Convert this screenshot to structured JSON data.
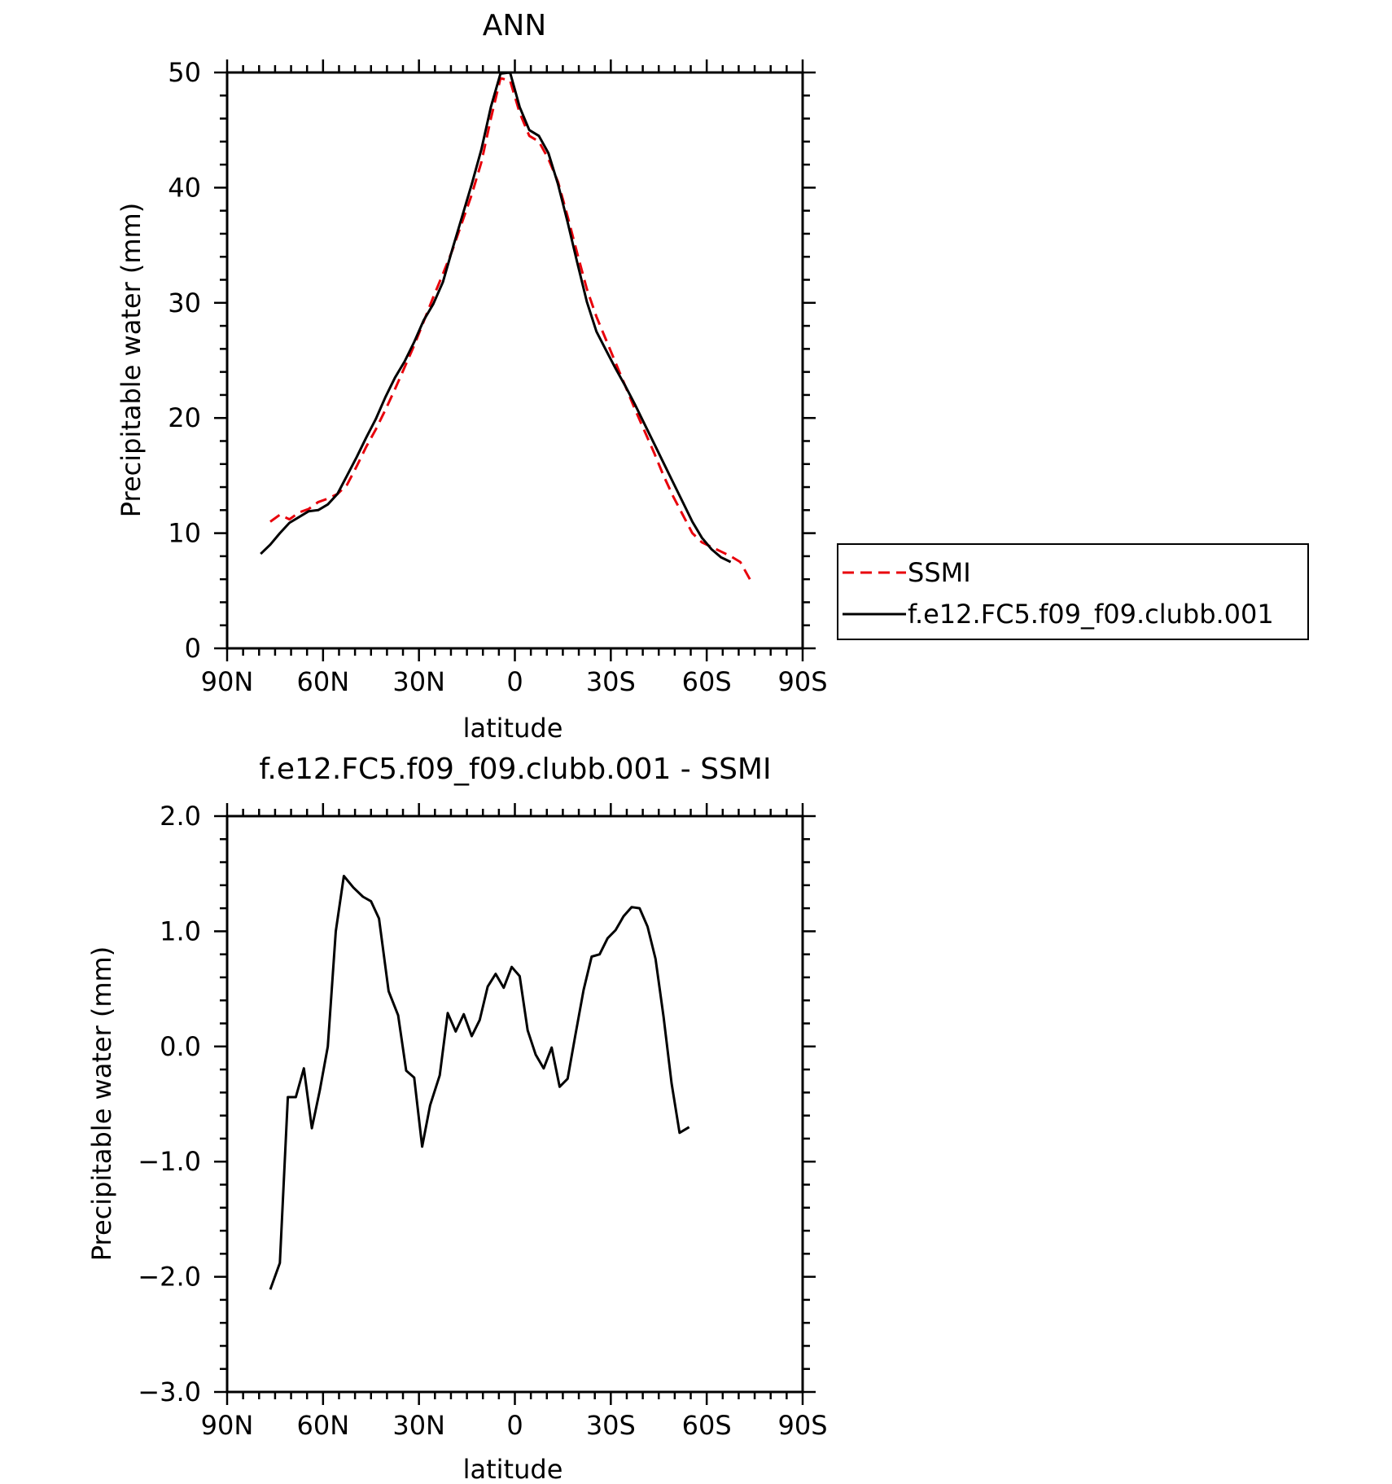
{
  "chart_data": [
    {
      "type": "line",
      "title": "ANN",
      "xlabel": "latitude",
      "ylabel": "Precipitable water (mm)",
      "x_ticks": [
        "90N",
        "60N",
        "30N",
        "0",
        "30S",
        "60S",
        "90S"
      ],
      "x_tick_values": [
        90,
        60,
        30,
        0,
        -30,
        -60,
        -90
      ],
      "y_ticks": [
        "0",
        "10",
        "20",
        "30",
        "40",
        "50"
      ],
      "y_tick_values": [
        0,
        10,
        20,
        30,
        40,
        50
      ],
      "xlim": [
        90,
        -90
      ],
      "ylim": [
        0,
        50
      ],
      "legend": {
        "placement": "right",
        "entries": [
          "SSMI",
          "f.e12.FC5.f09_f09.clubb.001"
        ]
      },
      "series": [
        {
          "name": "SSMI",
          "color": "#e8000b",
          "style": "dashed",
          "points": [
            [
              76.5,
              11.0
            ],
            [
              73.5,
              11.6
            ],
            [
              70.5,
              11.2
            ],
            [
              67.5,
              11.8
            ],
            [
              64.5,
              12.1
            ],
            [
              61.5,
              12.7
            ],
            [
              58.5,
              13.0
            ],
            [
              55.5,
              13.4
            ],
            [
              52.5,
              14.2
            ],
            [
              49.5,
              15.8
            ],
            [
              46.5,
              17.5
            ],
            [
              43.5,
              19.0
            ],
            [
              40.5,
              20.7
            ],
            [
              37.5,
              22.5
            ],
            [
              34.5,
              24.4
            ],
            [
              31.5,
              26.3
            ],
            [
              28.5,
              28.4
            ],
            [
              25.5,
              30.5
            ],
            [
              22.5,
              32.5
            ],
            [
              19.5,
              34.6
            ],
            [
              16.5,
              37.0
            ],
            [
              13.5,
              39.4
            ],
            [
              10.5,
              42.2
            ],
            [
              7.5,
              46.0
            ],
            [
              4.5,
              49.5
            ],
            [
              1.5,
              49.3
            ],
            [
              -1.5,
              46.5
            ],
            [
              -4.5,
              44.5
            ],
            [
              -7.5,
              44.0
            ],
            [
              -10.5,
              42.5
            ],
            [
              -13.5,
              40.5
            ],
            [
              -16.5,
              37.5
            ],
            [
              -19.5,
              34.3
            ],
            [
              -22.5,
              31.2
            ],
            [
              -25.5,
              28.8
            ],
            [
              -28.5,
              26.8
            ],
            [
              -31.5,
              24.8
            ],
            [
              -34.5,
              22.8
            ],
            [
              -37.5,
              20.8
            ],
            [
              -40.5,
              18.9
            ],
            [
              -43.5,
              17.0
            ],
            [
              -46.5,
              15.0
            ],
            [
              -49.5,
              13.2
            ],
            [
              -52.5,
              11.6
            ],
            [
              -55.5,
              10.0
            ],
            [
              -58.5,
              9.2
            ],
            [
              -61.5,
              8.8
            ],
            [
              -64.5,
              8.4
            ],
            [
              -67.5,
              8.0
            ],
            [
              -70.5,
              7.5
            ],
            [
              -73.5,
              6.0
            ]
          ]
        },
        {
          "name": "f.e12.FC5.f09_f09.clubb.001",
          "color": "#000000",
          "style": "solid",
          "points": [
            [
              79.5,
              8.2
            ],
            [
              76.5,
              9.0
            ],
            [
              73.5,
              10.0
            ],
            [
              70.5,
              10.9
            ],
            [
              67.5,
              11.4
            ],
            [
              64.5,
              11.9
            ],
            [
              61.5,
              12.0
            ],
            [
              58.5,
              12.5
            ],
            [
              55.5,
              13.4
            ],
            [
              52.5,
              15.0
            ],
            [
              49.5,
              16.6
            ],
            [
              46.5,
              18.3
            ],
            [
              43.5,
              19.9
            ],
            [
              40.5,
              21.8
            ],
            [
              37.5,
              23.5
            ],
            [
              34.5,
              24.9
            ],
            [
              31.5,
              26.6
            ],
            [
              28.5,
              28.5
            ],
            [
              25.5,
              29.9
            ],
            [
              22.5,
              31.8
            ],
            [
              19.5,
              34.7
            ],
            [
              16.5,
              37.5
            ],
            [
              13.5,
              40.3
            ],
            [
              10.5,
              43.3
            ],
            [
              7.5,
              47.0
            ],
            [
              4.5,
              49.9
            ],
            [
              1.5,
              50.0
            ],
            [
              -1.5,
              47.0
            ],
            [
              -4.5,
              45.0
            ],
            [
              -7.5,
              44.5
            ],
            [
              -10.5,
              43.0
            ],
            [
              -13.5,
              40.3
            ],
            [
              -16.5,
              37.0
            ],
            [
              -19.5,
              33.5
            ],
            [
              -22.5,
              30.1
            ],
            [
              -25.5,
              27.5
            ],
            [
              -28.5,
              25.9
            ],
            [
              -31.5,
              24.3
            ],
            [
              -34.5,
              22.8
            ],
            [
              -37.5,
              21.2
            ],
            [
              -40.5,
              19.5
            ],
            [
              -43.5,
              17.8
            ],
            [
              -46.5,
              16.1
            ],
            [
              -49.5,
              14.4
            ],
            [
              -52.5,
              12.7
            ],
            [
              -55.5,
              11.0
            ],
            [
              -58.5,
              9.6
            ],
            [
              -61.5,
              8.6
            ],
            [
              -64.5,
              7.9
            ],
            [
              -67.5,
              7.5
            ]
          ]
        }
      ]
    },
    {
      "type": "line",
      "title": "f.e12.FC5.f09_f09.clubb.001 - SSMI",
      "xlabel": "latitude",
      "ylabel": "Precipitable water (mm)",
      "x_ticks": [
        "90N",
        "60N",
        "30N",
        "0",
        "30S",
        "60S",
        "90S"
      ],
      "x_tick_values": [
        90,
        60,
        30,
        0,
        -30,
        -60,
        -90
      ],
      "y_ticks": [
        "-3.0",
        "-2.0",
        "-1.0",
        "0.0",
        "1.0",
        "2.0"
      ],
      "y_tick_values": [
        -3,
        -2,
        -1,
        0,
        1,
        2
      ],
      "xlim": [
        90,
        -90
      ],
      "ylim": [
        -3,
        2
      ],
      "series": [
        {
          "color": "#000000",
          "style": "solid",
          "points": [
            [
              76.5,
              -2.11
            ],
            [
              73.5,
              -1.88
            ],
            [
              71.0,
              -0.44
            ],
            [
              68.5,
              -0.44
            ],
            [
              66.0,
              -0.19
            ],
            [
              63.5,
              -0.71
            ],
            [
              61.0,
              -0.38
            ],
            [
              58.5,
              0.0
            ],
            [
              56.0,
              1.0
            ],
            [
              53.5,
              1.48
            ],
            [
              50.5,
              1.38
            ],
            [
              47.5,
              1.3
            ],
            [
              45.0,
              1.26
            ],
            [
              42.5,
              1.11
            ],
            [
              39.5,
              0.48
            ],
            [
              36.5,
              0.27
            ],
            [
              34.0,
              -0.21
            ],
            [
              31.5,
              -0.27
            ],
            [
              29.0,
              -0.87
            ],
            [
              26.5,
              -0.51
            ],
            [
              23.5,
              -0.25
            ],
            [
              21.0,
              0.29
            ],
            [
              18.5,
              0.13
            ],
            [
              16.0,
              0.28
            ],
            [
              13.5,
              0.09
            ],
            [
              11.0,
              0.23
            ],
            [
              8.5,
              0.52
            ],
            [
              6.0,
              0.63
            ],
            [
              3.5,
              0.51
            ],
            [
              1.0,
              0.69
            ],
            [
              -1.5,
              0.61
            ],
            [
              -4.0,
              0.14
            ],
            [
              -6.5,
              -0.07
            ],
            [
              -9.0,
              -0.19
            ],
            [
              -11.5,
              -0.01
            ],
            [
              -14.0,
              -0.35
            ],
            [
              -16.5,
              -0.28
            ],
            [
              -19.0,
              0.11
            ],
            [
              -21.5,
              0.49
            ],
            [
              -24.0,
              0.78
            ],
            [
              -26.5,
              0.8
            ],
            [
              -29.0,
              0.94
            ],
            [
              -31.5,
              1.01
            ],
            [
              -34.0,
              1.13
            ],
            [
              -36.5,
              1.21
            ],
            [
              -39.0,
              1.2
            ],
            [
              -41.5,
              1.04
            ],
            [
              -44.0,
              0.76
            ],
            [
              -46.5,
              0.26
            ],
            [
              -49.0,
              -0.32
            ],
            [
              -51.5,
              -0.75
            ],
            [
              -54.5,
              -0.7
            ]
          ]
        }
      ]
    }
  ]
}
